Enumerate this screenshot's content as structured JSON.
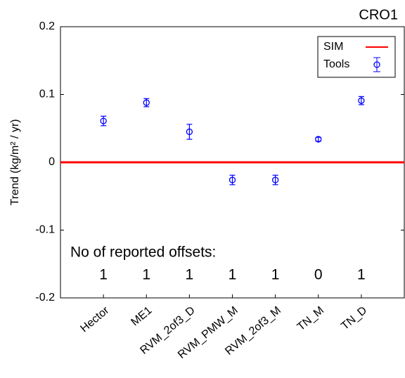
{
  "chart_data": {
    "type": "errorbar",
    "title": "CRO1",
    "y_label": "Trend (kg/m² / yr)",
    "categories": [
      "Hector",
      "ME1",
      "RVM_2of3_D",
      "RVM_PMW_M",
      "RVM_2of3_M",
      "TN_M",
      "TN_D"
    ],
    "series": [
      {
        "name": "Tools",
        "color": "#0000ff",
        "values": [
          0.061,
          0.088,
          0.045,
          -0.026,
          -0.026,
          0.034,
          0.091
        ],
        "errors": [
          0.007,
          0.006,
          0.011,
          0.007,
          0.007,
          0.003,
          0.006
        ]
      }
    ],
    "reference_line": {
      "name": "SIM",
      "value": 0,
      "color": "#ff0000"
    },
    "ylim": [
      -0.2,
      0.2
    ],
    "yticks": [
      -0.2,
      -0.1,
      0,
      0.1,
      0.2
    ],
    "offsets_title": "No of reported offsets:",
    "offsets": [
      1,
      1,
      1,
      1,
      1,
      0,
      1
    ],
    "offset_colors": [
      "#cc0000",
      "#000000",
      "#000000",
      "#000000",
      "#000000",
      "#000000",
      "#000000"
    ],
    "legend": "upper right"
  }
}
